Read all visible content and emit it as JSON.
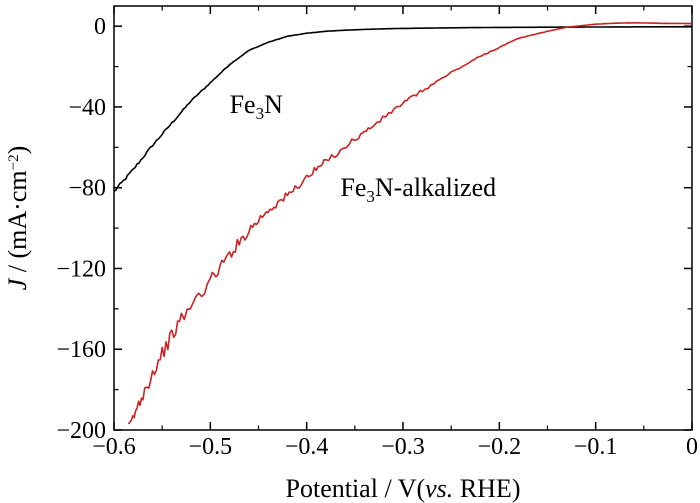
{
  "chart_data": {
    "type": "line",
    "title": "",
    "xlabel": {
      "prefix": "Potential / V(",
      "italic": "vs.",
      "suffix": " RHE)"
    },
    "ylabel": {
      "italic": "J",
      "text": " / (mA·cm",
      "sup": "−2",
      "close": ")"
    },
    "xlim": [
      -0.6,
      0.0
    ],
    "ylim": [
      -200,
      10
    ],
    "x_ticks": [
      -0.6,
      -0.5,
      -0.4,
      -0.3,
      -0.2,
      -0.1,
      0.0
    ],
    "x_tick_labels": [
      "−0.6",
      "−0.5",
      "−0.4",
      "−0.3",
      "−0.2",
      "−0.1",
      "0"
    ],
    "y_ticks": [
      0,
      -40,
      -80,
      -120,
      -160,
      -200
    ],
    "y_tick_labels": [
      "0",
      "−40",
      "−80",
      "−120",
      "−160",
      "−200"
    ],
    "x_minor_ticks": [
      -0.55,
      -0.45,
      -0.35,
      -0.25,
      -0.15,
      -0.05
    ],
    "y_minor_ticks": [
      -20,
      -60,
      -100,
      -140,
      -180
    ],
    "series": [
      {
        "name": "Fe3N",
        "color": "#000000",
        "x": [
          -0.6,
          -0.58,
          -0.56,
          -0.54,
          -0.52,
          -0.5,
          -0.48,
          -0.46,
          -0.44,
          -0.42,
          -0.4,
          -0.38,
          -0.36,
          -0.34,
          -0.32,
          -0.3,
          -0.25,
          -0.2,
          -0.15,
          -0.1,
          -0.05,
          0.0
        ],
        "y": [
          -82,
          -71,
          -59,
          -48,
          -37,
          -28,
          -19,
          -12,
          -8,
          -5,
          -3.5,
          -2.5,
          -2,
          -1.6,
          -1.3,
          -1.1,
          -0.8,
          -0.6,
          -0.5,
          -0.4,
          -0.3,
          -0.3
        ]
      },
      {
        "name": "Fe3N-alkalized",
        "color": "#cc2222",
        "x": [
          -0.585,
          -0.57,
          -0.55,
          -0.53,
          -0.5,
          -0.48,
          -0.46,
          -0.44,
          -0.42,
          -0.4,
          -0.38,
          -0.35,
          -0.33,
          -0.3,
          -0.28,
          -0.25,
          -0.22,
          -0.2,
          -0.18,
          -0.15,
          -0.13,
          -0.12,
          -0.1,
          -0.08,
          -0.06,
          -0.05,
          -0.03,
          0.0
        ],
        "y": [
          -200,
          -182,
          -162,
          -145,
          -126,
          -113,
          -101,
          -91,
          -84,
          -75,
          -67,
          -56,
          -49,
          -38,
          -32,
          -23,
          -15,
          -10.5,
          -6,
          -2.5,
          -0.5,
          0.0,
          1.0,
          1.5,
          1.7,
          1.6,
          1.4,
          1.3
        ]
      }
    ],
    "annotations": [
      {
        "base": "Fe",
        "sub": "3",
        "rest": "N",
        "x": -0.48,
        "y": -43
      },
      {
        "base": "Fe",
        "sub": "3",
        "rest": "N-alkalized",
        "x": -0.365,
        "y": -84
      }
    ]
  }
}
